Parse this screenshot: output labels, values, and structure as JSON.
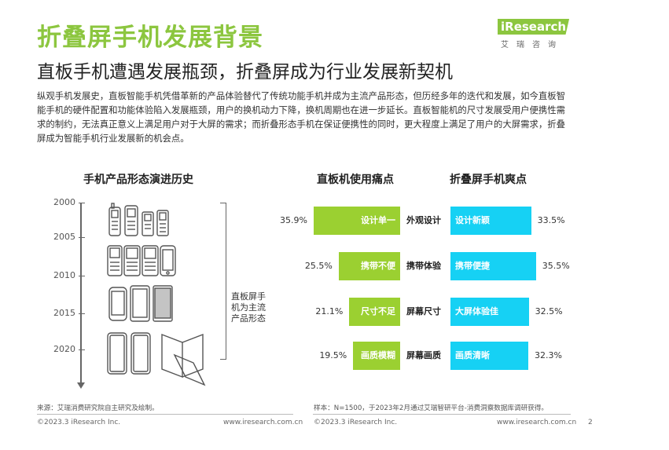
{
  "header": {
    "title": "折叠屏手机发展背景",
    "subtitle": "直板手机遭遇发展瓶颈，折叠屏成为行业发展新契机",
    "logo_brand": "iResearch",
    "logo_cn": "艾瑞咨询"
  },
  "intro": "纵观手机发展史，直板智能手机凭借革新的产品体验替代了传统功能手机并成为主流产品形态，但历经多年的迭代和发展，如今直板智能手机的硬件配置和功能体验陷入发展瓶颈，用户的换机动力下降，换机周期也在进一步延长。直板智能机的尺寸发展受用户便携性需求的制约，无法真正意义上满足用户对于大屏的需求；而折叠形态手机在保证便携性的同时，更大程度上满足了用户的大屏需求，折叠屏成为智能手机行业发展新的机会点。",
  "timeline": {
    "title": "手机产品形态演进历史",
    "years": [
      "2000",
      "2005",
      "2010",
      "2015",
      "2020"
    ],
    "bracket_label": "直板屏手机为主流产品形态"
  },
  "chart_data": {
    "type": "bar",
    "categories": [
      "外观设计",
      "携带体验",
      "屏幕尺寸",
      "屏幕画质"
    ],
    "series": [
      {
        "name": "直板机使用痛点",
        "values": [
          35.9,
          25.5,
          21.1,
          19.5
        ],
        "labels": [
          "设计单一",
          "携带不便",
          "尺寸不足",
          "画质模糊"
        ],
        "color": "#9bd031"
      },
      {
        "name": "折叠屏手机爽点",
        "values": [
          33.5,
          35.5,
          32.5,
          32.3
        ],
        "labels": [
          "设计新颖",
          "携带便捷",
          "大屏体验佳",
          "画质清晰"
        ],
        "color": "#16d1f4"
      }
    ],
    "value_suffix": "%"
  },
  "pain_title": "直板机使用痛点",
  "gain_title": "折叠屏手机爽点",
  "notes": {
    "left": "来源：艾瑞消费研究院自主研究及绘制。",
    "right": "样本：N=1500，于2023年2月通过艾瑞智研平台-消费洞察数据库调研获得。"
  },
  "footer": {
    "copyright_left": "©2023.3 iResearch Inc.",
    "url_left": "www.iresearch.com.cn",
    "copyright_right": "©2023.3 iResearch Inc.",
    "url_right": "www.iresearch.com.cn",
    "page": "2"
  }
}
